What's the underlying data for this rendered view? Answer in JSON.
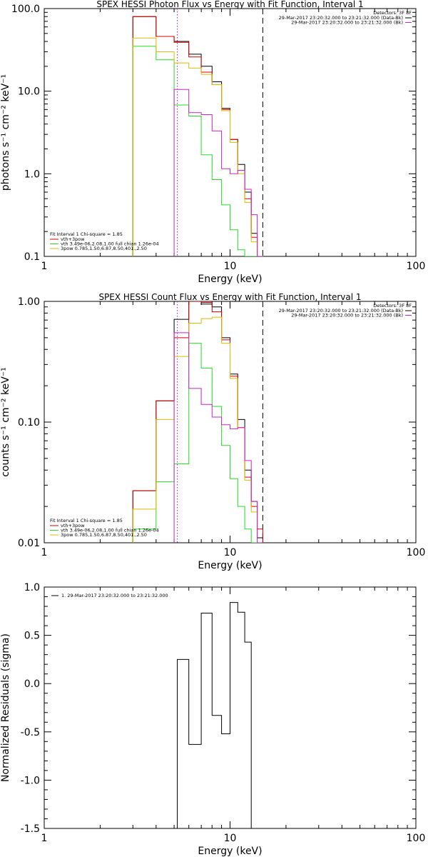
{
  "colors": {
    "black": "#000000",
    "red": "#d40000",
    "green": "#22dd22",
    "yellow": "#ddbb00",
    "magenta": "#cc22cc"
  },
  "chart_data": [
    {
      "type": "line",
      "title": "SPEX HESSI Photon Flux vs Energy with Fit Function, Interval 1",
      "xlabel": "Energy (keV)",
      "ylabel": "photons s⁻¹ cm⁻² keV⁻¹",
      "xscale": "log",
      "yscale": "log",
      "xlim": [
        1,
        100
      ],
      "ylim": [
        0.1,
        100
      ],
      "xticks": [
        {
          "v": 1,
          "label": "1"
        },
        {
          "v": 10,
          "label": "10"
        },
        {
          "v": 100,
          "label": "100"
        }
      ],
      "yticks": [
        {
          "v": 0.1,
          "label": "0.1"
        },
        {
          "v": 1,
          "label": "1.0"
        },
        {
          "v": 10,
          "label": "10.0"
        },
        {
          "v": 100,
          "label": "100.0"
        }
      ],
      "vlines": [
        {
          "x": 5.2,
          "style": "dotted",
          "color": "black"
        },
        {
          "x": 5.2,
          "style": "dotted",
          "color": "magenta"
        },
        {
          "x": 15.0,
          "style": "dashed",
          "color": "black"
        }
      ],
      "bin_edges": [
        3,
        4,
        5,
        6,
        7,
        8,
        9,
        10,
        11,
        12,
        13,
        14,
        15
      ],
      "series": [
        {
          "name": "",
          "color": "black",
          "values": [
            80,
            46,
            40,
            28,
            20,
            13,
            6.2,
            2.6,
            1.3,
            0.6,
            0.19,
            0.1
          ]
        },
        {
          "name": "vth+3pow",
          "color": "red",
          "values": [
            80,
            46,
            39,
            26,
            17,
            12,
            6.0,
            2.6,
            1.1,
            0.5,
            0.17,
            0.1
          ]
        },
        {
          "name": "vth 3.49e-06,2.08,1.00 full chian 1.26e-04",
          "color": "green",
          "values": [
            35,
            24,
            6.8,
            5.0,
            1.7,
            0.85,
            0.42,
            0.21,
            0.12,
            0.1,
            0.1,
            0.1
          ]
        },
        {
          "name": "3pow 0.785,1.50,6.87,8.50,401.,2.50",
          "color": "yellow",
          "values": [
            44,
            30,
            22,
            19,
            16,
            12,
            5.8,
            2.4,
            1.0,
            0.45,
            0.15,
            0.1
          ]
        },
        {
          "name": "",
          "color": "magenta",
          "values": [
            null,
            null,
            10.5,
            5.5,
            5.2,
            3.3,
            1.15,
            1.0,
            1.1,
            0.65,
            0.32,
            0.1
          ]
        }
      ],
      "legend_left": {
        "header": "Fit Interval  1    Chi-square = 1.85",
        "entries": [
          "vth+3pow",
          "vth 3.49e-06,2.08,1.00 full chian 1.26e-04",
          "3pow 0.785,1.50,6.87,8.50,401.,2.50"
        ]
      },
      "legend_right": {
        "header": "Detectors: 3F 8F",
        "entries": [
          "29-Mar-2017 23:20:32.000 to 23:21:32.000 (Data-Bk)",
          "29-Mar-2017 23:20:32.000 to 23:21:32.000 (Bk)"
        ]
      }
    },
    {
      "type": "line",
      "title": "SPEX HESSI Count Flux vs Energy with Fit Function, Interval 1",
      "xlabel": "Energy (keV)",
      "ylabel": "counts s⁻¹ cm⁻² keV⁻¹",
      "xscale": "log",
      "yscale": "log",
      "xlim": [
        1,
        100
      ],
      "ylim": [
        0.01,
        1.0
      ],
      "xticks": [
        {
          "v": 1,
          "label": "1"
        },
        {
          "v": 10,
          "label": "10"
        },
        {
          "v": 100,
          "label": "100"
        }
      ],
      "yticks": [
        {
          "v": 0.01,
          "label": "0.01"
        },
        {
          "v": 0.1,
          "label": "0.10"
        },
        {
          "v": 1,
          "label": "1.00"
        }
      ],
      "vlines": [
        {
          "x": 5.2,
          "style": "dotted",
          "color": "black"
        },
        {
          "x": 5.2,
          "style": "dotted",
          "color": "magenta"
        },
        {
          "x": 15.0,
          "style": "dashed",
          "color": "black"
        }
      ],
      "bin_edges": [
        3,
        4,
        5,
        6,
        7,
        8,
        9,
        10,
        11,
        12,
        13,
        14,
        15
      ],
      "series": [
        {
          "name": "",
          "color": "black",
          "values": [
            0.027,
            0.15,
            0.71,
            1.0,
            0.95,
            0.9,
            0.5,
            0.25,
            0.105,
            0.04,
            0.022,
            0.011
          ]
        },
        {
          "name": "vth+3pow",
          "color": "red",
          "values": [
            0.027,
            0.15,
            0.5,
            1.0,
            0.98,
            0.82,
            0.48,
            0.24,
            0.09,
            0.035,
            0.02,
            0.013
          ]
        },
        {
          "name": "vth 3.49e-06,2.08,1.00 full chian 1.26e-04",
          "color": "green",
          "values": [
            0.013,
            0.032,
            0.045,
            0.45,
            0.28,
            0.135,
            0.064,
            0.034,
            0.02,
            0.013,
            0.01,
            0.01
          ]
        },
        {
          "name": "3pow 0.785,1.50,6.87,8.50,401.,2.50",
          "color": "yellow",
          "values": [
            0.019,
            0.105,
            0.35,
            0.66,
            0.72,
            0.74,
            0.45,
            0.23,
            0.09,
            0.033,
            0.018,
            0.01
          ]
        },
        {
          "name": "",
          "color": "magenta",
          "values": [
            null,
            null,
            0.55,
            0.19,
            0.14,
            0.11,
            0.095,
            0.088,
            0.09,
            0.048,
            0.022,
            0.01
          ]
        }
      ],
      "legend_left": {
        "header": "Fit Interval  1    Chi-square = 1.85",
        "entries": [
          "vth+3pow",
          "vth 3.49e-06,2.08,1.00 full chian 1.26e-04",
          "3pow 0.785,1.50,6.87,8.50,401.,2.50"
        ]
      },
      "legend_right": {
        "header": "Detectors: 3F 8F",
        "entries": [
          "29-Mar-2017 23:20:32.000 to 23:21:32.000 (Data-Bk)",
          "29-Mar-2017 23:20:32.000 to 23:21:32.000 (Bk)"
        ]
      }
    },
    {
      "type": "line",
      "title": "",
      "xlabel": "Energy (keV)",
      "ylabel": "Normalized Residuals (sigma)",
      "xscale": "log",
      "yscale": "linear",
      "xlim": [
        1,
        100
      ],
      "ylim": [
        -1.5,
        1.0
      ],
      "xticks": [
        {
          "v": 1,
          "label": "1"
        },
        {
          "v": 10,
          "label": "10"
        },
        {
          "v": 100,
          "label": "100"
        }
      ],
      "yticks": [
        {
          "v": -1.5,
          "label": "-1.5"
        },
        {
          "v": -1.0,
          "label": "-1.0"
        },
        {
          "v": -0.5,
          "label": "-0.5"
        },
        {
          "v": 0.0,
          "label": "0.0"
        },
        {
          "v": 0.5,
          "label": "0.5"
        },
        {
          "v": 1.0,
          "label": "1.0"
        }
      ],
      "bin_edges": [
        5.2,
        6,
        7,
        8,
        9,
        10,
        11,
        12,
        13,
        14,
        15
      ],
      "series": [
        {
          "name": "1. 29-Mar-2017 23:20:32.000 to 23:21:32.000",
          "color": "black",
          "values": [
            0.25,
            -0.63,
            0.73,
            -0.33,
            -0.52,
            0.84,
            0.74,
            0.43,
            -1.5,
            -1.5
          ]
        }
      ],
      "legend_left": {
        "header": "",
        "entries": [
          "1. 29-Mar-2017 23:20:32.000 to 23:21:32.000"
        ]
      }
    }
  ]
}
